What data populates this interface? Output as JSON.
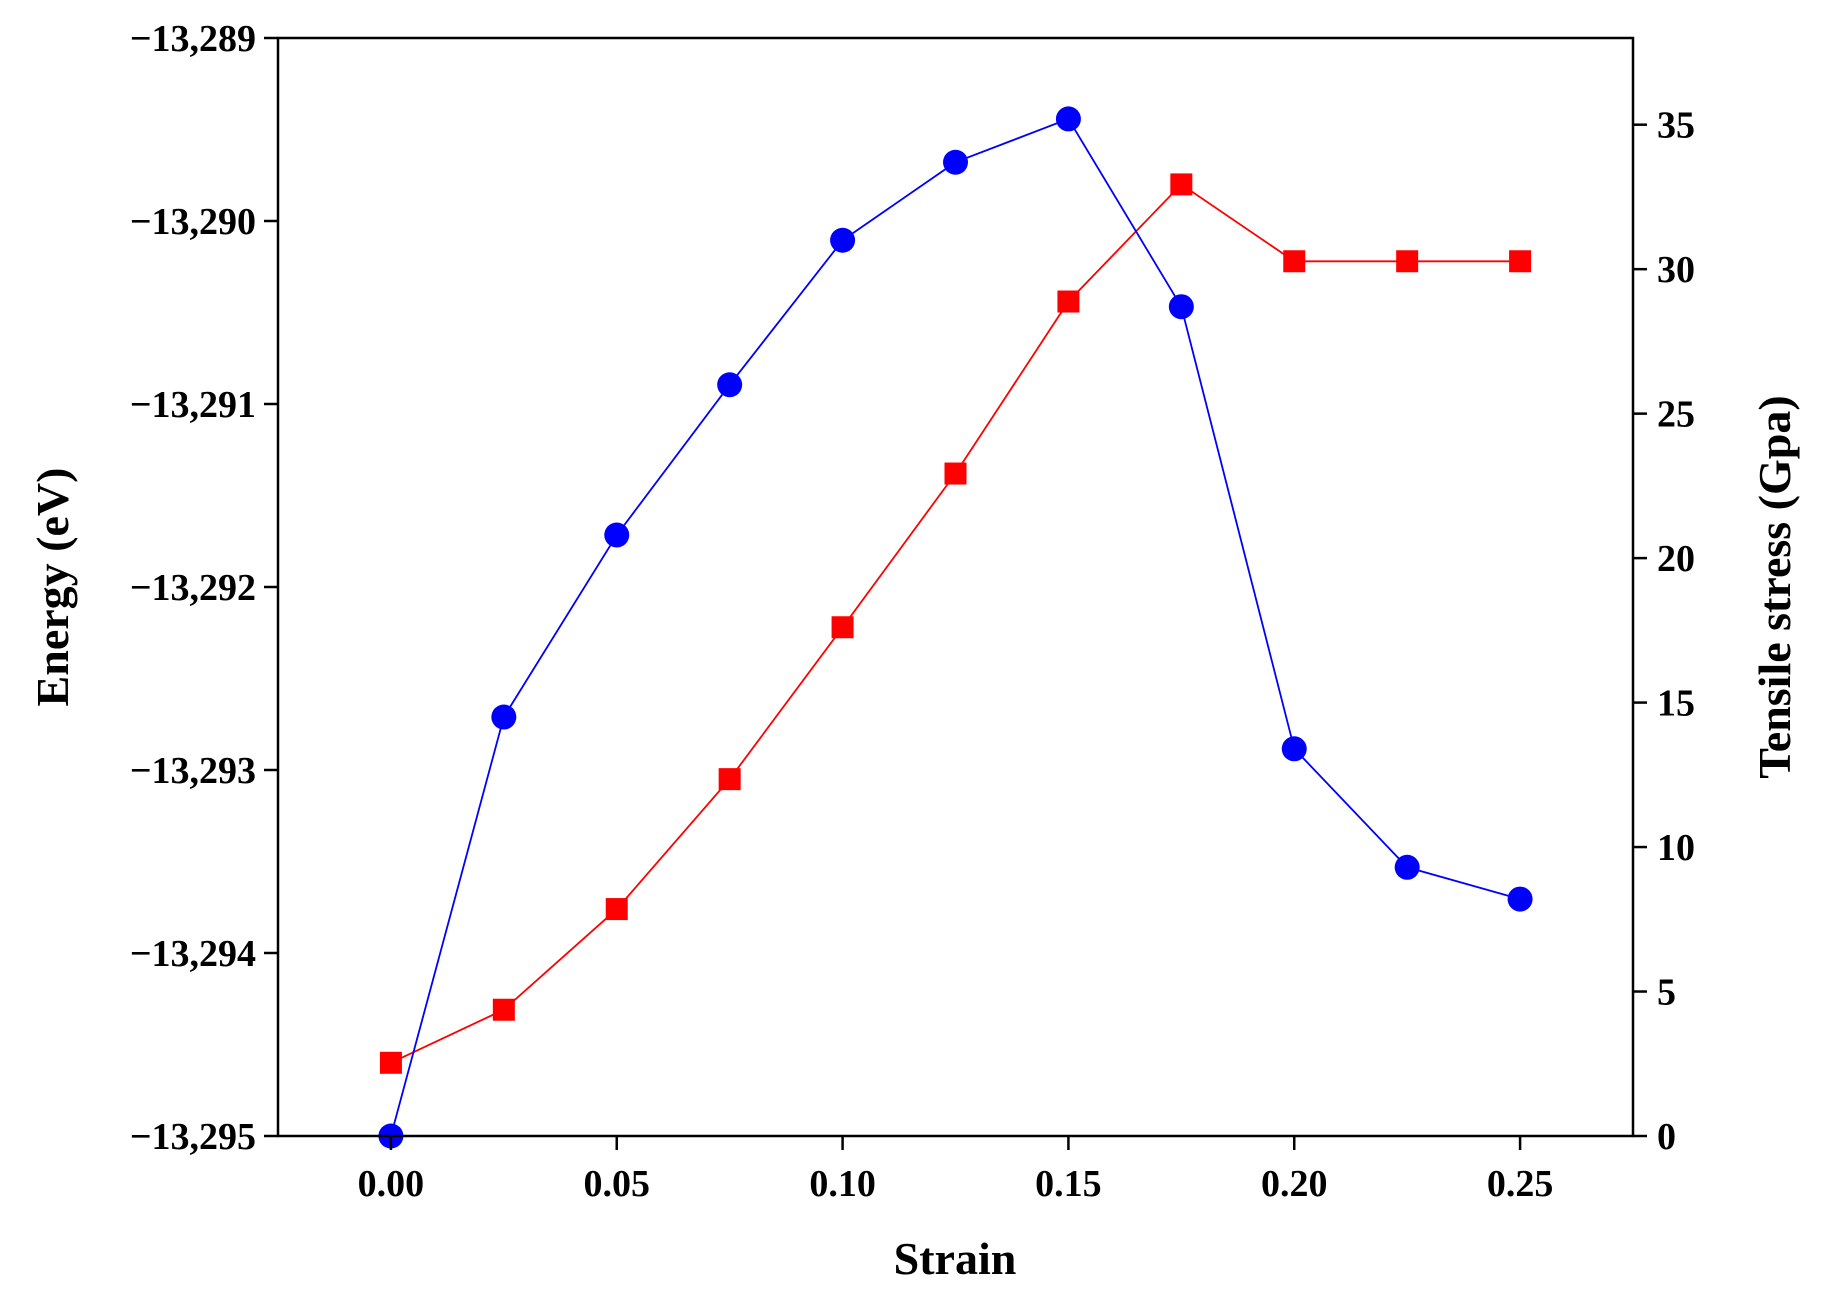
{
  "chart_data": {
    "type": "line",
    "title": "",
    "xlabel": "Strain",
    "ylabel_left": "Energy (eV)",
    "ylabel_right": "Tensile stress (Gpa)",
    "xlim": [
      -0.025,
      0.275
    ],
    "ylim_left": [
      -13295,
      -13289
    ],
    "ylim_right": [
      0,
      38
    ],
    "grid": false,
    "legend": "none",
    "x_ticks": [
      {
        "value": 0.0,
        "label": "0.00"
      },
      {
        "value": 0.05,
        "label": "0.05"
      },
      {
        "value": 0.1,
        "label": "0.10"
      },
      {
        "value": 0.15,
        "label": "0.15"
      },
      {
        "value": 0.2,
        "label": "0.20"
      },
      {
        "value": 0.25,
        "label": "0.25"
      }
    ],
    "left_ticks": [
      {
        "value": -13289,
        "label": "−13,289"
      },
      {
        "value": -13290,
        "label": "−13,290"
      },
      {
        "value": -13291,
        "label": "−13,291"
      },
      {
        "value": -13292,
        "label": "−13,292"
      },
      {
        "value": -13293,
        "label": "−13,293"
      },
      {
        "value": -13294,
        "label": "−13,294"
      },
      {
        "value": -13295,
        "label": "−13,295"
      }
    ],
    "right_ticks": [
      {
        "value": 0,
        "label": "0"
      },
      {
        "value": 5,
        "label": "5"
      },
      {
        "value": 10,
        "label": "10"
      },
      {
        "value": 15,
        "label": "15"
      },
      {
        "value": 20,
        "label": "20"
      },
      {
        "value": 25,
        "label": "25"
      },
      {
        "value": 30,
        "label": "30"
      },
      {
        "value": 35,
        "label": "35"
      }
    ],
    "series": [
      {
        "name": "Energy",
        "axis": "left",
        "marker": "square",
        "color": "#ff0000",
        "x": [
          0.0,
          0.025,
          0.05,
          0.075,
          0.1,
          0.125,
          0.15,
          0.175,
          0.2,
          0.225,
          0.25
        ],
        "values": [
          -13294.6,
          -13294.31,
          -13293.76,
          -13293.05,
          -13292.22,
          -13291.38,
          -13290.44,
          -13289.8,
          -13290.22,
          -13290.22,
          -13290.22
        ]
      },
      {
        "name": "Tensile stress",
        "axis": "right",
        "marker": "circle",
        "color": "#0000ff",
        "x": [
          0.0,
          0.025,
          0.05,
          0.075,
          0.1,
          0.125,
          0.15,
          0.175,
          0.2,
          0.225,
          0.25
        ],
        "values": [
          0.0,
          14.5,
          20.8,
          26.0,
          31.0,
          33.7,
          35.2,
          28.7,
          13.4,
          9.3,
          8.2
        ]
      }
    ]
  }
}
